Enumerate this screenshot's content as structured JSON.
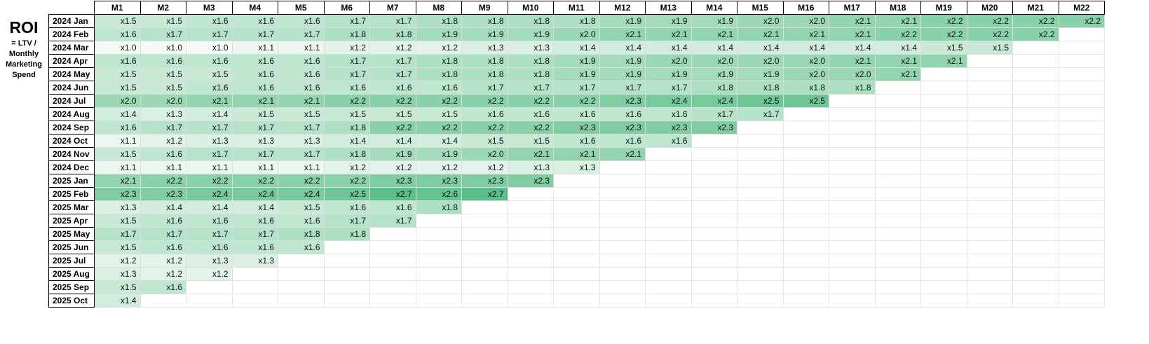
{
  "sheet": {
    "title": "ROI",
    "subtitle_lines": [
      "= LTV /",
      "Monthly",
      "Marketing",
      "Spend"
    ]
  },
  "columns": [
    "M1",
    "M2",
    "M3",
    "M4",
    "M5",
    "M6",
    "M7",
    "M8",
    "M9",
    "M10",
    "M11",
    "M12",
    "M13",
    "M14",
    "M15",
    "M16",
    "M17",
    "M18",
    "M19",
    "M20",
    "M21",
    "M22"
  ],
  "rows": [
    {
      "label": "2024 Jan",
      "values": [
        1.5,
        1.5,
        1.6,
        1.6,
        1.6,
        1.7,
        1.7,
        1.8,
        1.8,
        1.8,
        1.8,
        1.9,
        1.9,
        1.9,
        2.0,
        2.0,
        2.1,
        2.1,
        2.2,
        2.2,
        2.2,
        2.2
      ]
    },
    {
      "label": "2024 Feb",
      "values": [
        1.6,
        1.7,
        1.7,
        1.7,
        1.7,
        1.8,
        1.8,
        1.9,
        1.9,
        1.9,
        2.0,
        2.1,
        2.1,
        2.1,
        2.1,
        2.1,
        2.1,
        2.2,
        2.2,
        2.2,
        2.2
      ]
    },
    {
      "label": "2024 Mar",
      "values": [
        1.0,
        1.0,
        1.0,
        1.1,
        1.1,
        1.2,
        1.2,
        1.2,
        1.3,
        1.3,
        1.4,
        1.4,
        1.4,
        1.4,
        1.4,
        1.4,
        1.4,
        1.4,
        1.5,
        1.5
      ]
    },
    {
      "label": "2024 Apr",
      "values": [
        1.6,
        1.6,
        1.6,
        1.6,
        1.6,
        1.7,
        1.7,
        1.8,
        1.8,
        1.8,
        1.9,
        1.9,
        2.0,
        2.0,
        2.0,
        2.0,
        2.1,
        2.1,
        2.1
      ]
    },
    {
      "label": "2024 May",
      "values": [
        1.5,
        1.5,
        1.5,
        1.6,
        1.6,
        1.7,
        1.7,
        1.8,
        1.8,
        1.8,
        1.9,
        1.9,
        1.9,
        1.9,
        1.9,
        2.0,
        2.0,
        2.1
      ]
    },
    {
      "label": "2024 Jun",
      "values": [
        1.5,
        1.5,
        1.6,
        1.6,
        1.6,
        1.6,
        1.6,
        1.6,
        1.7,
        1.7,
        1.7,
        1.7,
        1.7,
        1.8,
        1.8,
        1.8,
        1.8
      ]
    },
    {
      "label": "2024 Jul",
      "values": [
        2.0,
        2.0,
        2.1,
        2.1,
        2.1,
        2.2,
        2.2,
        2.2,
        2.2,
        2.2,
        2.2,
        2.3,
        2.4,
        2.4,
        2.5,
        2.5
      ]
    },
    {
      "label": "2024 Aug",
      "values": [
        1.4,
        1.3,
        1.4,
        1.5,
        1.5,
        1.5,
        1.5,
        1.5,
        1.6,
        1.6,
        1.6,
        1.6,
        1.6,
        1.7,
        1.7
      ]
    },
    {
      "label": "2024 Sep",
      "values": [
        1.6,
        1.7,
        1.7,
        1.7,
        1.7,
        1.8,
        2.2,
        2.2,
        2.2,
        2.2,
        2.3,
        2.3,
        2.3,
        2.3
      ]
    },
    {
      "label": "2024 Oct",
      "values": [
        1.1,
        1.2,
        1.3,
        1.3,
        1.3,
        1.4,
        1.4,
        1.4,
        1.5,
        1.5,
        1.6,
        1.6,
        1.6
      ]
    },
    {
      "label": "2024 Nov",
      "values": [
        1.5,
        1.6,
        1.7,
        1.7,
        1.7,
        1.8,
        1.9,
        1.9,
        2.0,
        2.1,
        2.1,
        2.1
      ]
    },
    {
      "label": "2024 Dec",
      "values": [
        1.1,
        1.1,
        1.1,
        1.1,
        1.1,
        1.2,
        1.2,
        1.2,
        1.2,
        1.3,
        1.3
      ]
    },
    {
      "label": "2025 Jan",
      "values": [
        2.1,
        2.2,
        2.2,
        2.2,
        2.2,
        2.2,
        2.3,
        2.3,
        2.3,
        2.3
      ]
    },
    {
      "label": "2025 Feb",
      "values": [
        2.3,
        2.3,
        2.4,
        2.4,
        2.4,
        2.5,
        2.7,
        2.6,
        2.7
      ]
    },
    {
      "label": "2025 Mar",
      "values": [
        1.3,
        1.4,
        1.4,
        1.4,
        1.5,
        1.6,
        1.6,
        1.8
      ]
    },
    {
      "label": "2025 Apr",
      "values": [
        1.5,
        1.6,
        1.6,
        1.6,
        1.6,
        1.7,
        1.7
      ]
    },
    {
      "label": "2025 May",
      "values": [
        1.7,
        1.7,
        1.7,
        1.7,
        1.8,
        1.8
      ]
    },
    {
      "label": "2025 Jun",
      "values": [
        1.5,
        1.6,
        1.6,
        1.6,
        1.6
      ]
    },
    {
      "label": "2025 Jul",
      "values": [
        1.2,
        1.2,
        1.3,
        1.3
      ]
    },
    {
      "label": "2025 Aug",
      "values": [
        1.3,
        1.2,
        1.2
      ]
    },
    {
      "label": "2025 Sep",
      "values": [
        1.5,
        1.6
      ]
    },
    {
      "label": "2025 Oct",
      "values": [
        1.4
      ]
    }
  ],
  "value_prefix": "x",
  "colors": {
    "scale_low": "#f4fbf6",
    "scale_high": "#5cbf8a",
    "header_border": "#000000",
    "grid_line": "#dcdcdc"
  }
}
